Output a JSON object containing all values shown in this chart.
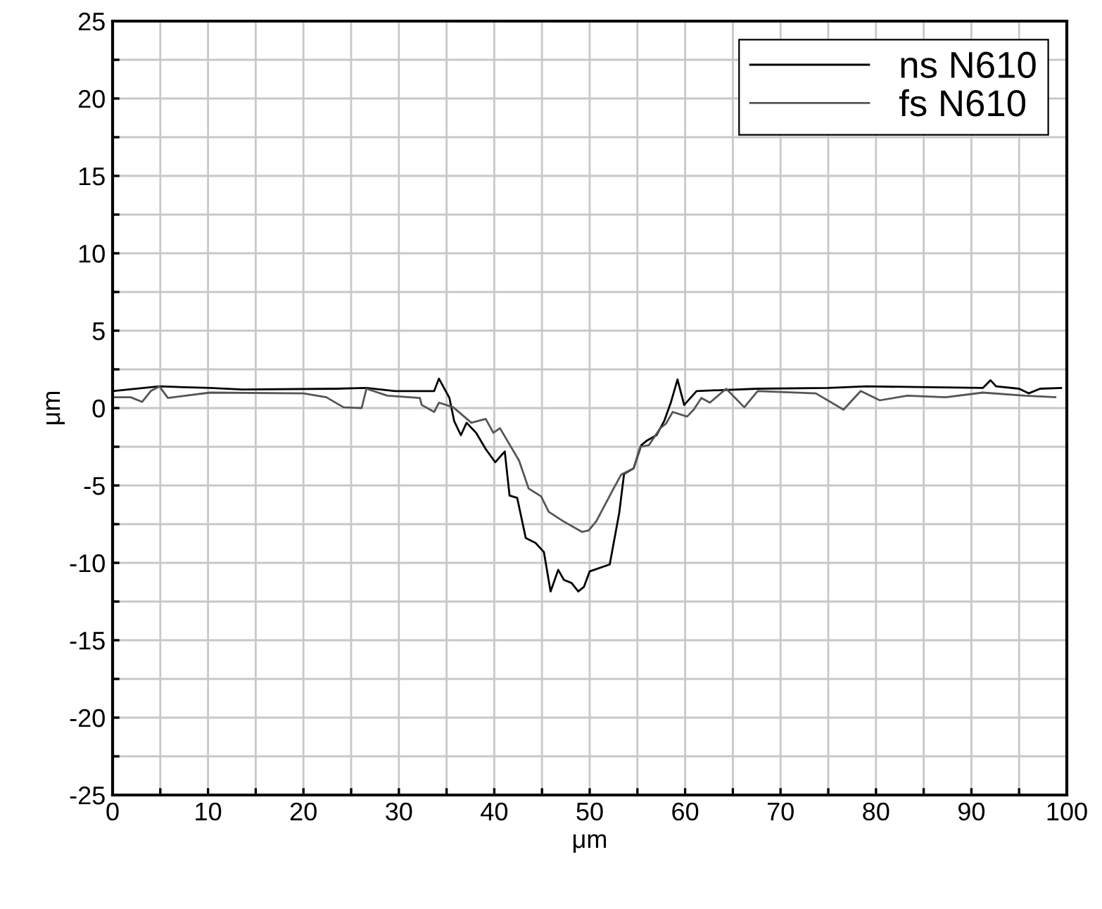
{
  "chart_data": {
    "type": "line",
    "xlabel": "μm",
    "ylabel": "μm",
    "xlim": [
      0,
      100
    ],
    "ylim": [
      -25,
      25
    ],
    "xticks": [
      0,
      {
        "value": 5,
        "label": null
      },
      10,
      {
        "value": 15,
        "label": null
      },
      20,
      {
        "value": 25,
        "label": null
      },
      30,
      {
        "value": 35,
        "label": null
      },
      40,
      {
        "value": 45,
        "label": null
      },
      50,
      {
        "value": 55,
        "label": null
      },
      60,
      {
        "value": 65,
        "label": null
      },
      70,
      {
        "value": 75,
        "label": null
      },
      80,
      {
        "value": 85,
        "label": null
      },
      90,
      {
        "value": 95,
        "label": null
      },
      100
    ],
    "yticks": [
      -25,
      {
        "value": -22.5,
        "label": null
      },
      -20,
      {
        "value": -17.5,
        "label": null
      },
      -15,
      {
        "value": -12.5,
        "label": null
      },
      -10,
      {
        "value": -7.5,
        "label": null
      },
      -5,
      {
        "value": -2.5,
        "label": null
      },
      0,
      {
        "value": 2.5,
        "label": null
      },
      5,
      {
        "value": 7.5,
        "label": null
      },
      10,
      {
        "value": 12.5,
        "label": null
      },
      15,
      {
        "value": 17.5,
        "label": null
      },
      20,
      {
        "value": 22.5,
        "label": null
      },
      25
    ],
    "grid": true,
    "legend": "top right",
    "marker": "none",
    "line_style": "solid",
    "series": [
      {
        "name": "ns N610",
        "color": "#000000",
        "x": [
          0,
          4.9,
          10.2,
          13.6,
          23.4,
          26.6,
          29.6,
          33.7,
          34.2,
          35.3,
          35.8,
          36.5,
          37.1,
          38.1,
          39.1,
          40.1,
          41.1,
          41.6,
          42.4,
          43.3,
          44.3,
          45.2,
          45.9,
          46.7,
          47.3,
          48.1,
          48.8,
          49.4,
          50.0,
          52.1,
          53.1,
          53.6,
          54.6,
          55.4,
          56.0,
          57.0,
          57.8,
          58.5,
          59.2,
          59.9,
          61.2,
          67.6,
          75,
          79,
          91.2,
          92,
          92.6,
          95,
          96,
          97.2,
          99.4
        ],
        "values": [
          1.1,
          1.4,
          1.3,
          1.2,
          1.25,
          1.3,
          1.1,
          1.1,
          1.9,
          0.65,
          -0.85,
          -1.75,
          -0.95,
          -1.6,
          -2.65,
          -3.5,
          -2.8,
          -5.65,
          -5.8,
          -8.4,
          -8.7,
          -9.3,
          -11.85,
          -10.45,
          -11.1,
          -11.3,
          -11.85,
          -11.55,
          -10.55,
          -10.1,
          -6.75,
          -4.25,
          -3.9,
          -2.4,
          -2.1,
          -1.75,
          -0.85,
          0.35,
          1.85,
          0.2,
          1.1,
          1.25,
          1.3,
          1.4,
          1.3,
          1.8,
          1.4,
          1.25,
          0.95,
          1.25,
          1.3
        ]
      },
      {
        "name": "fs N610",
        "color": "#555555",
        "x": [
          0,
          1.9,
          3.1,
          4.0,
          4.9,
          5.8,
          10.2,
          20,
          22.4,
          24.2,
          26.1,
          26.6,
          28.8,
          32.2,
          32.4,
          33.7,
          34.2,
          35.7,
          37.6,
          39.1,
          39.9,
          40.6,
          42.6,
          43.6,
          44.9,
          45.7,
          47.2,
          49.2,
          49.9,
          50.7,
          52.5,
          53.3,
          54.6,
          55.3,
          56.2,
          57.4,
          58.0,
          58.7,
          60.2,
          60.9,
          61.7,
          62.6,
          64.3,
          66.2,
          67.6,
          73.7,
          76.6,
          78.4,
          80.4,
          83.3,
          87.3,
          91.2,
          95.6,
          98.8
        ],
        "values": [
          0.7,
          0.7,
          0.4,
          1.1,
          1.4,
          0.65,
          1.0,
          0.95,
          0.7,
          0.05,
          0,
          1.25,
          0.8,
          0.65,
          0.2,
          -0.25,
          0.35,
          0.05,
          -0.95,
          -0.7,
          -1.6,
          -1.3,
          -3.4,
          -5.2,
          -5.7,
          -6.7,
          -7.3,
          -8.0,
          -7.9,
          -7.3,
          -5.2,
          -4.3,
          -3.9,
          -2.5,
          -2.4,
          -1.3,
          -1.0,
          -0.25,
          -0.55,
          -0.1,
          0.65,
          0.35,
          1.25,
          0.05,
          1.1,
          0.95,
          -0.1,
          1.1,
          0.5,
          0.8,
          0.7,
          1.0,
          0.8,
          0.7
        ]
      }
    ]
  }
}
